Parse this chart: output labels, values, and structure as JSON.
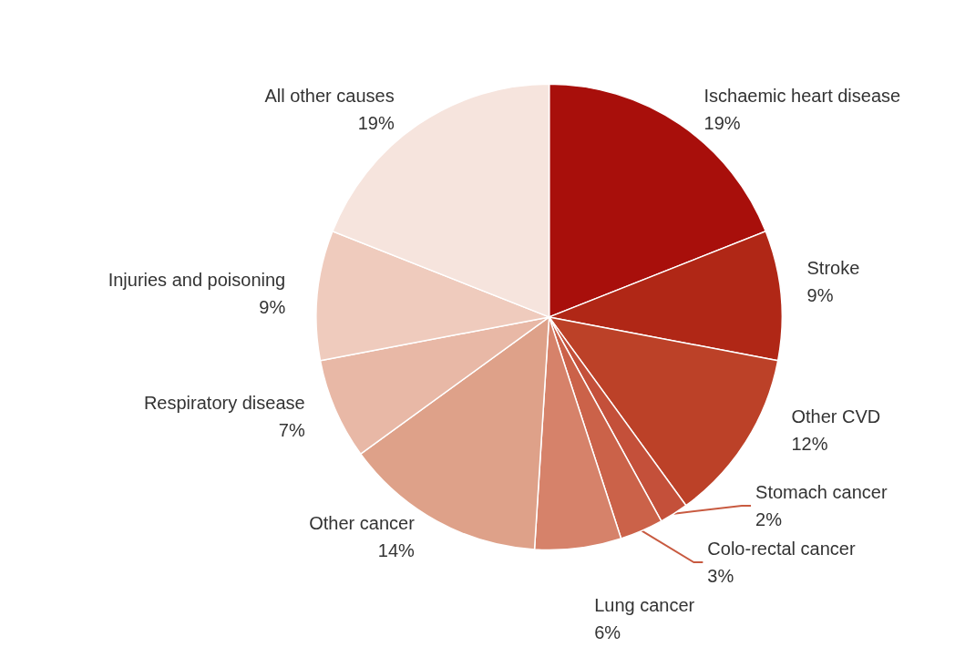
{
  "chart_data": {
    "type": "pie",
    "categories": [
      "Ischaemic heart disease",
      "Stroke",
      "Other CVD",
      "Stomach cancer",
      "Colo-rectal cancer",
      "Lung cancer",
      "Other cancer",
      "Respiratory disease",
      "Injuries and poisoning",
      "All other causes"
    ],
    "values": [
      19,
      9,
      12,
      2,
      3,
      6,
      14,
      7,
      9,
      19
    ],
    "value_labels": [
      "19%",
      "9%",
      "12%",
      "2%",
      "3%",
      "6%",
      "14%",
      "7%",
      "9%",
      "19%"
    ],
    "colors": [
      "#a80f0b",
      "#b02716",
      "#bc4128",
      "#c4503a",
      "#cb6249",
      "#d6826a",
      "#dea189",
      "#e8b8a6",
      "#efcbbd",
      "#f6e4dd"
    ],
    "legend": false
  }
}
